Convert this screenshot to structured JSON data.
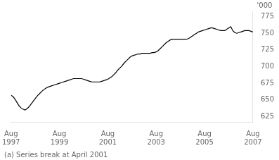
{
  "chart_data": {
    "type": "line",
    "annotations": [
      "'000",
      "(a) Series break at April 2001"
    ],
    "x": [
      0,
      1,
      2,
      3,
      4,
      5,
      6,
      7,
      8,
      9,
      10,
      11,
      12,
      13,
      14,
      15,
      16,
      17,
      18,
      19,
      20,
      21,
      22,
      23,
      24,
      25,
      26,
      27,
      28,
      29,
      30,
      31,
      32,
      33,
      34,
      35,
      36,
      37,
      38,
      39,
      40,
      41,
      42,
      43,
      44,
      45,
      46,
      47,
      48,
      49,
      50,
      51,
      52,
      53,
      54,
      55,
      56,
      57,
      58,
      59,
      60,
      61,
      62,
      63,
      64,
      65,
      66,
      67,
      68,
      69,
      70,
      71,
      72,
      73,
      74,
      75,
      76,
      77,
      78,
      79,
      80,
      81,
      82,
      83,
      84,
      85,
      86,
      87,
      88,
      89,
      90,
      91,
      92,
      93,
      94,
      95,
      96,
      97,
      98,
      99,
      100,
      101,
      102,
      103,
      104,
      105,
      106,
      107,
      108,
      109,
      110,
      111,
      112,
      113,
      114,
      115,
      116,
      117,
      118,
      119,
      120
    ],
    "values": [
      657,
      655,
      651,
      646,
      641,
      638,
      636,
      635,
      637,
      640,
      644,
      648,
      652,
      656,
      659,
      662,
      665,
      667,
      669,
      670,
      671,
      672,
      673,
      674,
      675,
      676,
      677,
      678,
      679,
      680,
      681,
      682,
      682,
      682,
      682,
      682,
      681,
      680,
      679,
      678,
      677,
      677,
      677,
      677,
      677,
      678,
      679,
      680,
      681,
      683,
      685,
      688,
      691,
      695,
      698,
      701,
      705,
      708,
      711,
      714,
      716,
      717,
      718,
      719,
      719,
      720,
      720,
      720,
      720,
      720,
      721,
      721,
      722,
      724,
      727,
      730,
      733,
      736,
      738,
      740,
      741,
      741,
      741,
      741,
      741,
      741,
      741,
      741,
      742,
      744,
      746,
      748,
      750,
      752,
      753,
      754,
      755,
      756,
      757,
      758,
      758,
      757,
      756,
      755,
      754,
      754,
      754,
      756,
      758,
      760,
      754,
      751,
      750,
      751,
      752,
      753,
      754,
      754,
      754,
      753,
      752
    ],
    "color": "#000000",
    "xlim": [
      0,
      120
    ],
    "xticks": [
      {
        "value": 0,
        "label": "Aug\n1997"
      },
      {
        "value": 24,
        "label": "Aug\n1999"
      },
      {
        "value": 48,
        "label": "Aug\n2001"
      },
      {
        "value": 72,
        "label": "Aug\n2003"
      },
      {
        "value": 96,
        "label": "Aug\n2005"
      },
      {
        "value": 120,
        "label": "Aug\n2007"
      }
    ],
    "ylim": [
      617,
      783
    ],
    "yticks": [
      625,
      650,
      675,
      700,
      725,
      750,
      775
    ],
    "grid": false
  }
}
